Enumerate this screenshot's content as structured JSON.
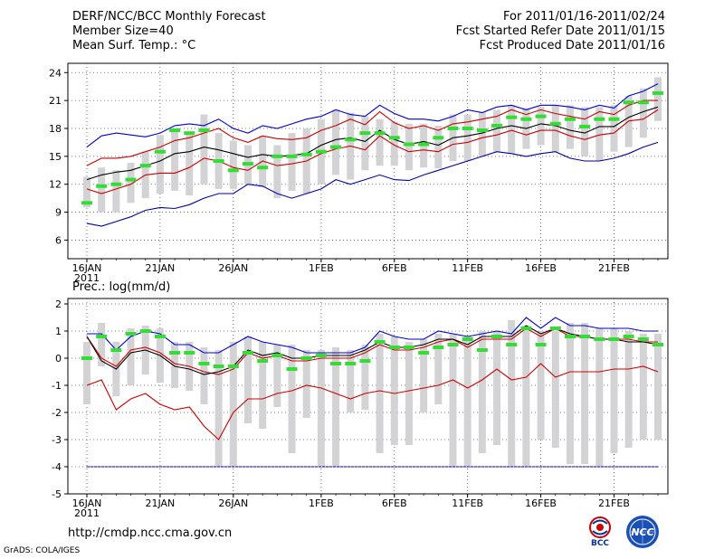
{
  "header": {
    "left": [
      "DERF/NCC/BCC Monthly Forecast",
      "Member Size=40",
      "Mean Surf. Temp.: °C"
    ],
    "right": [
      "For 2011/01/16-2011/02/24",
      "Fcst Started Refer Date 2011/01/15",
      "Fcst Produced Date 2011/01/16"
    ]
  },
  "precip_title": "Prec.: log(mm/d)",
  "footer": {
    "url": "http://cmdp.ncc.cma.gov.cn",
    "credit": "GrADS: COLA/IGES"
  },
  "logos": [
    {
      "name": "bcc-logo",
      "text": "BCC"
    },
    {
      "name": "ncc-logo",
      "text": "NCC"
    }
  ],
  "colors": {
    "max": "#0000cc",
    "p90": "#cc0000",
    "mean": "#000000",
    "obs": "#33dd33",
    "box": "#d3d3d6",
    "min": "#0000aa"
  },
  "chart_data": [
    {
      "type": "line",
      "title": "Mean Surf. Temp.: °C",
      "x_labels": [
        "16JAN",
        "21JAN",
        "26JAN",
        "1FEB",
        "6FEB",
        "11FEB",
        "16FEB",
        "21FEB"
      ],
      "x_label_days": [
        0,
        5,
        10,
        16,
        21,
        26,
        31,
        36
      ],
      "x_year": "2011",
      "ylim": [
        4,
        25
      ],
      "yticks": [
        6,
        9,
        12,
        15,
        18,
        21,
        24
      ],
      "days": 40,
      "series": [
        {
          "name": "max",
          "values": [
            16,
            17.2,
            17.5,
            17.3,
            17.1,
            17.5,
            18.3,
            18.5,
            18.3,
            19,
            18,
            17.5,
            18.3,
            18,
            18.5,
            19,
            19.3,
            20,
            19.5,
            19.3,
            20.5,
            19.6,
            19,
            19,
            18.8,
            19.3,
            20,
            19.7,
            20.3,
            20.5,
            20,
            20.5,
            20.5,
            20.3,
            20,
            20.5,
            20.2,
            21.5,
            22,
            22.8
          ]
        },
        {
          "name": "upper",
          "values": [
            14,
            14.8,
            14.8,
            15,
            15.5,
            16,
            16.7,
            17,
            17.5,
            18,
            17,
            16.5,
            17.2,
            16.9,
            16.8,
            17,
            17.8,
            18.3,
            19,
            18.4,
            19.8,
            18.6,
            18,
            18.3,
            17.8,
            18.5,
            18.7,
            19,
            19.3,
            20,
            19.5,
            20,
            19.6,
            19.3,
            19,
            19.8,
            19.5,
            20.5,
            21,
            21
          ]
        },
        {
          "name": "mean",
          "values": [
            12.5,
            13,
            13.3,
            13.5,
            14,
            14.5,
            15.3,
            15.5,
            16,
            15.7,
            15.3,
            14.9,
            15.2,
            15,
            15.1,
            15.3,
            16.2,
            16.8,
            17,
            16.6,
            17.8,
            16.8,
            16.3,
            16.6,
            16.2,
            17,
            17.2,
            17.5,
            18,
            18.3,
            18,
            18.5,
            18.3,
            17.8,
            17.5,
            18.2,
            18.2,
            19.2,
            19.8,
            20.3
          ]
        },
        {
          "name": "lower",
          "values": [
            11.5,
            11,
            11.5,
            12,
            13,
            13.2,
            13.2,
            13.8,
            14.8,
            14.5,
            13.8,
            13.5,
            14.5,
            14,
            14.2,
            14.5,
            15.3,
            15.8,
            16.1,
            15.7,
            17.2,
            16.2,
            15.5,
            15.7,
            15.5,
            16.3,
            16.5,
            17,
            17.3,
            17.8,
            17.3,
            17.8,
            17.8,
            17.2,
            16.8,
            17.3,
            17.5,
            18.8,
            19,
            20
          ]
        },
        {
          "name": "min",
          "values": [
            7.8,
            7.5,
            8,
            8.5,
            9.2,
            9.5,
            9.4,
            9.8,
            10.5,
            11,
            11,
            12,
            11.8,
            11,
            10.5,
            11,
            11.5,
            12.5,
            12,
            12.5,
            13,
            12.5,
            12.4,
            13,
            13.5,
            14,
            14.5,
            15,
            15.5,
            15.3,
            15,
            15.3,
            15.5,
            14.8,
            14.5,
            14.5,
            14.8,
            15.3,
            16,
            16.5
          ]
        },
        {
          "name": "observed",
          "values": [
            10,
            11.8,
            12,
            12.5,
            14,
            15.5,
            17.8,
            17.5,
            17.8,
            14.5,
            13.5,
            14.2,
            13.8,
            15,
            15,
            15.2,
            15.5,
            16,
            16.8,
            17.5,
            17.5,
            17,
            16.3,
            16.3,
            17,
            18,
            18,
            17.8,
            18.3,
            19.2,
            19,
            19.3,
            18.5,
            19,
            18.2,
            19,
            19,
            20.8,
            20.8,
            21.8
          ]
        },
        {
          "name": "box_top",
          "values": [
            12.8,
            13.8,
            13.5,
            14.3,
            15.5,
            17.3,
            17.8,
            17.5,
            19.5,
            17.5,
            16.7,
            16.2,
            17.2,
            16.2,
            17.5,
            18,
            19,
            20,
            19.7,
            19.3,
            19,
            18.7,
            18.5,
            18.5,
            18.3,
            19.5,
            19.5,
            19.8,
            20,
            20.5,
            20.2,
            20.3,
            20.5,
            20.5,
            20.3,
            20.3,
            20.5,
            21.5,
            22.3,
            23.5
          ]
        },
        {
          "name": "box_bottom",
          "values": [
            9.5,
            9,
            9,
            10,
            10.5,
            11,
            11.3,
            10.8,
            12,
            11.5,
            11.5,
            12,
            11.7,
            10.5,
            11.3,
            11,
            12,
            13,
            12.5,
            13.5,
            14,
            14,
            13.5,
            13.8,
            13.7,
            14.5,
            14.5,
            15,
            15.5,
            15.3,
            15.8,
            16.2,
            15.5,
            15.8,
            15,
            14.5,
            15.5,
            16,
            17,
            18.8
          ]
        }
      ]
    },
    {
      "type": "line",
      "title": "Prec.: log(mm/d)",
      "x_labels": [
        "16JAN",
        "21JAN",
        "26JAN",
        "1FEB",
        "6FEB",
        "11FEB",
        "16FEB",
        "21FEB"
      ],
      "x_label_days": [
        0,
        5,
        10,
        16,
        21,
        26,
        31,
        36
      ],
      "x_year": "2011",
      "ylim": [
        -5,
        2.2
      ],
      "yticks": [
        -5,
        -4,
        -3,
        -2,
        -1,
        0,
        1,
        2
      ],
      "days": 40,
      "series": [
        {
          "name": "max",
          "values": [
            0.9,
            0.9,
            0.3,
            0.8,
            1,
            0.9,
            0.5,
            0.5,
            0.2,
            0.2,
            0.5,
            0.8,
            0.6,
            0.5,
            0.4,
            0.2,
            0.2,
            0.2,
            0.2,
            0.4,
            1,
            0.8,
            0.7,
            0.7,
            1,
            0.9,
            0.8,
            0.9,
            1,
            0.9,
            1.5,
            1.1,
            1.5,
            1.2,
            1.2,
            1.1,
            1.1,
            1.1,
            1,
            1
          ]
        },
        {
          "name": "upper",
          "values": [
            0.8,
            0,
            -0.3,
            0.3,
            0.4,
            0.2,
            -0.2,
            -0.3,
            -0.5,
            -0.6,
            -0.4,
            0.2,
            0,
            0.1,
            -0.1,
            -0.1,
            0,
            0,
            0,
            0.2,
            0.5,
            0.3,
            0.3,
            0.4,
            0.6,
            0.7,
            0.4,
            0.7,
            0.7,
            0.7,
            1.1,
            0.8,
            1.1,
            0.8,
            0.8,
            0.7,
            0.7,
            0.7,
            0.6,
            0.6
          ]
        },
        {
          "name": "mean",
          "values": [
            0.8,
            -0.1,
            -0.4,
            0.2,
            0.3,
            0.1,
            -0.3,
            -0.4,
            -0.6,
            -0.5,
            -0.3,
            0.3,
            0.1,
            0.2,
            0,
            0,
            0.1,
            0.1,
            0.1,
            0.3,
            0.6,
            0.4,
            0.4,
            0.5,
            0.7,
            0.7,
            0.5,
            0.8,
            0.8,
            0.8,
            1.2,
            0.9,
            1.1,
            0.9,
            0.8,
            0.7,
            0.7,
            0.6,
            0.6,
            0.5
          ]
        },
        {
          "name": "lower",
          "values": [
            -1,
            -0.8,
            -1.9,
            -1.5,
            -1.3,
            -1.7,
            -1.9,
            -1.8,
            -2.5,
            -3,
            -2,
            -1.5,
            -1.5,
            -1.3,
            -1.2,
            -1,
            -1.1,
            -1.3,
            -1.5,
            -1.3,
            -1.2,
            -1.3,
            -1.2,
            -1.1,
            -1,
            -0.8,
            -1.1,
            -0.8,
            -0.4,
            -0.8,
            -0.7,
            -0.2,
            -0.7,
            -0.5,
            -0.5,
            -0.5,
            -0.4,
            -0.4,
            -0.3,
            -0.5
          ]
        },
        {
          "name": "min",
          "values": [
            -4,
            -4,
            -4,
            -4,
            -4,
            -4,
            -4,
            -4,
            -4,
            -4,
            -4,
            -4,
            -4,
            -4,
            -4,
            -4,
            -4,
            -4,
            -4,
            -4,
            -4,
            -4,
            -4,
            -4,
            -4,
            -4,
            -4,
            -4,
            -4,
            -4,
            -4,
            -4,
            -4,
            -4,
            -4,
            -4,
            -4,
            -4,
            -4,
            -4
          ]
        },
        {
          "name": "observed",
          "values": [
            0,
            0.8,
            0.3,
            0.9,
            1,
            0.8,
            0.2,
            0.2,
            -0.2,
            -0.3,
            -0.3,
            0.2,
            -0.1,
            0.1,
            -0.4,
            0,
            0.1,
            -0.2,
            -0.2,
            -0.1,
            0.6,
            0.4,
            0.4,
            0.2,
            0.4,
            0.5,
            0.7,
            0.3,
            0.8,
            0.5,
            1.1,
            0.5,
            1.1,
            0.8,
            0.8,
            0.7,
            0.7,
            0.8,
            0.7,
            0.5
          ]
        },
        {
          "name": "box_top",
          "values": [
            0.6,
            1.3,
            0.6,
            1.1,
            1.2,
            1.1,
            0.6,
            0.6,
            0.4,
            0.3,
            0.6,
            0.8,
            0.6,
            0.5,
            0.5,
            0.3,
            0.3,
            0.4,
            0.3,
            0.5,
            0.9,
            0.8,
            0.6,
            0.7,
            0.9,
            0.9,
            0.8,
            1,
            1,
            1.4,
            1.2,
            1,
            1,
            1.3,
            1.3,
            1.1,
            1.1,
            1,
            0.9,
            0.9
          ]
        },
        {
          "name": "box_bottom",
          "values": [
            -1.7,
            -0.3,
            -1.4,
            -1,
            -0.6,
            -0.9,
            -1.1,
            -1.2,
            -1.7,
            -4,
            -4,
            -2.4,
            -2.6,
            -1.8,
            -3.5,
            -2.2,
            -4,
            -4,
            -2,
            -1.9,
            -3.5,
            -3.2,
            -3.2,
            -2,
            -1.7,
            -4,
            -4,
            -3.5,
            -3.2,
            -4,
            -4,
            -3,
            -3.3,
            -3.9,
            -3.9,
            -4,
            -3.5,
            -3.3,
            -3,
            -3
          ]
        }
      ]
    }
  ]
}
